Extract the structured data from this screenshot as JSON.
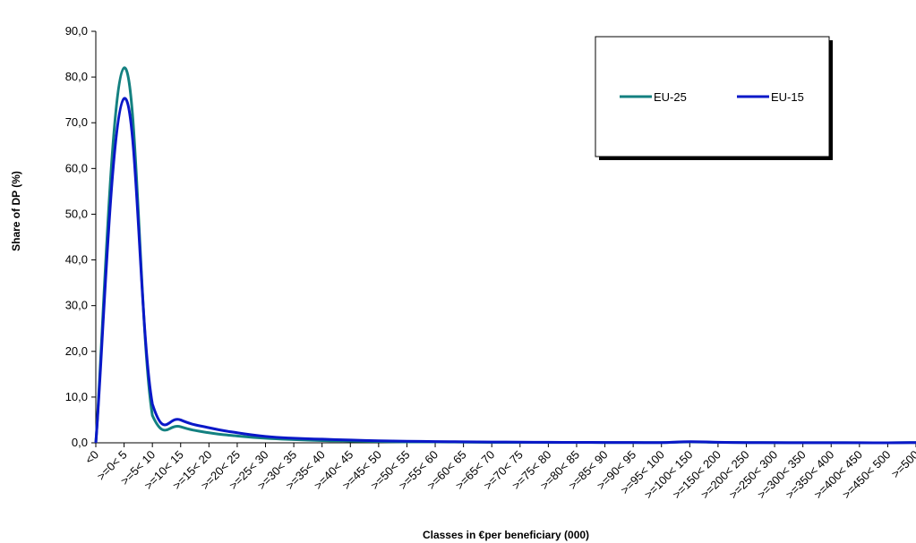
{
  "chart_data": {
    "type": "line",
    "title": "",
    "xlabel": "Classes in €per beneficiary (000)",
    "ylabel": "Share of DP (%)",
    "ylim": [
      0,
      90
    ],
    "yticks": [
      "0,0",
      "10,0",
      "20,0",
      "30,0",
      "40,0",
      "50,0",
      "60,0",
      "70,0",
      "80,0",
      "90,0"
    ],
    "categories": [
      "<0",
      ">=0< 5",
      ">=5< 10",
      ">=10< 15",
      ">=15< 20",
      ">=20< 25",
      ">=25< 30",
      ">=30< 35",
      ">=35< 40",
      ">=40< 45",
      ">=45< 50",
      ">=50< 55",
      ">=55< 60",
      ">=60< 65",
      ">=65< 70",
      ">=70< 75",
      ">=75< 80",
      ">=80< 85",
      ">=85< 90",
      ">=90< 95",
      ">=95< 100",
      ">=100< 150",
      ">=150< 200",
      ">=200< 250",
      ">=250< 300",
      ">=300< 350",
      ">=350< 400",
      ">=400< 450",
      ">=450< 500",
      ">=500"
    ],
    "grid": false,
    "legend_position": "top-right",
    "series": [
      {
        "name": "EU-25",
        "color": "#138080",
        "values": [
          0.0,
          82.0,
          6.0,
          3.5,
          2.2,
          1.5,
          1.0,
          0.7,
          0.5,
          0.4,
          0.3,
          0.2,
          0.2,
          0.15,
          0.1,
          0.1,
          0.08,
          0.07,
          0.06,
          0.05,
          0.05,
          0.2,
          0.1,
          0.05,
          0.03,
          0.02,
          0.02,
          0.01,
          0.01,
          0.05
        ]
      },
      {
        "name": "EU-15",
        "color": "#0a18c8",
        "values": [
          0.0,
          75.3,
          8.5,
          5.0,
          3.3,
          2.2,
          1.4,
          1.0,
          0.8,
          0.6,
          0.45,
          0.35,
          0.28,
          0.22,
          0.18,
          0.15,
          0.12,
          0.1,
          0.08,
          0.07,
          0.06,
          0.25,
          0.12,
          0.06,
          0.04,
          0.03,
          0.02,
          0.02,
          0.01,
          0.06
        ]
      }
    ]
  }
}
